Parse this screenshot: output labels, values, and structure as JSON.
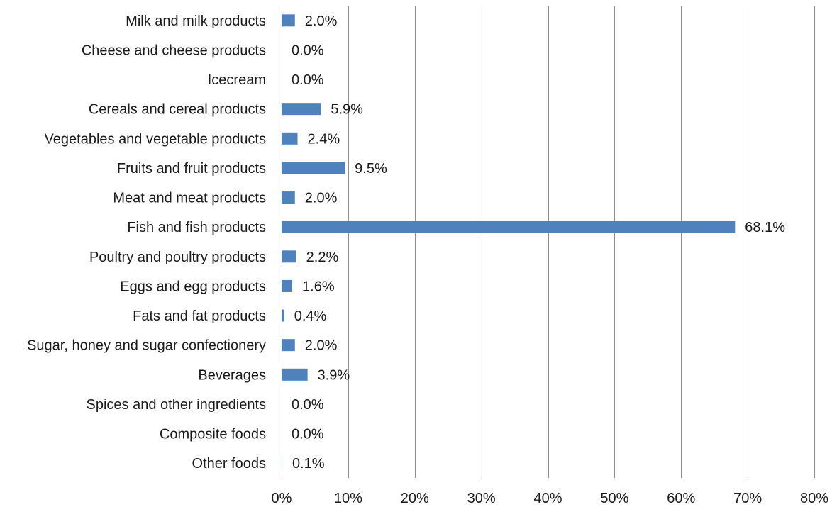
{
  "chart_data": {
    "type": "bar",
    "orientation": "horizontal",
    "title": "",
    "xlabel": "",
    "ylabel": "",
    "categories": [
      "Milk and milk products",
      "Cheese and cheese products",
      "Icecream",
      "Cereals and cereal products",
      "Vegetables and vegetable products",
      "Fruits and fruit products",
      "Meat and meat products",
      "Fish and fish products",
      "Poultry and poultry products",
      "Eggs and egg products",
      "Fats and fat products",
      "Sugar, honey and sugar confectionery",
      "Beverages",
      "Spices and other ingredients",
      "Composite foods",
      "Other foods"
    ],
    "values": [
      2.0,
      0.0,
      0.0,
      5.9,
      2.4,
      9.5,
      2.0,
      68.1,
      2.2,
      1.6,
      0.4,
      2.0,
      3.9,
      0.0,
      0.0,
      0.1
    ],
    "value_labels": [
      "2.0%",
      "0.0%",
      "0.0%",
      "5.9%",
      "2.4%",
      "9.5%",
      "2.0%",
      "68.1%",
      "2.2%",
      "1.6%",
      "0.4%",
      "2.0%",
      "3.9%",
      "0.0%",
      "0.0%",
      "0.1%"
    ],
    "xlim": [
      0,
      80
    ],
    "xticks": [
      0,
      10,
      20,
      30,
      40,
      50,
      60,
      70,
      80
    ],
    "xtick_labels": [
      "0%",
      "10%",
      "20%",
      "30%",
      "40%",
      "50%",
      "60%",
      "70%",
      "80%"
    ],
    "grid": "vertical",
    "legend": "none",
    "bar_color": "#4f81bd",
    "grid_color": "#8c8c8c"
  }
}
